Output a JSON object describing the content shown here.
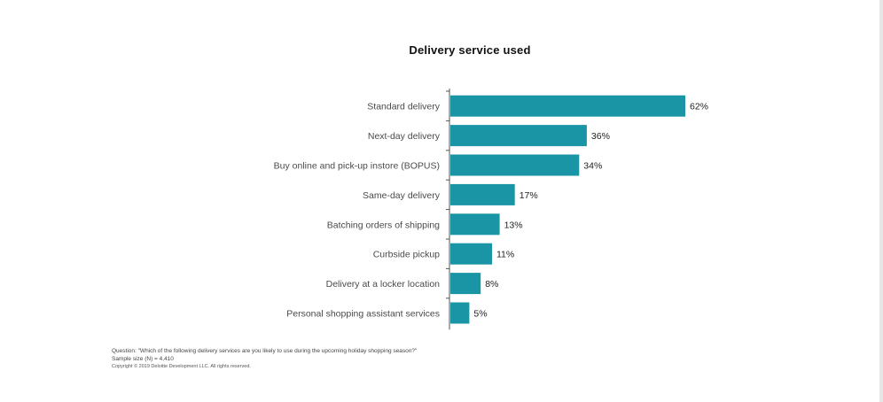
{
  "chart_data": {
    "type": "bar",
    "orientation": "horizontal",
    "title": "Delivery service used",
    "categories": [
      "Standard delivery",
      "Next-day delivery",
      "Buy online and pick-up instore (BOPUS)",
      "Same-day delivery",
      "Batching orders of shipping",
      "Curbside pickup",
      "Delivery at a locker location",
      "Personal shopping assistant services"
    ],
    "values": [
      62,
      36,
      34,
      17,
      13,
      11,
      8,
      5
    ],
    "value_labels": [
      "62%",
      "36%",
      "34%",
      "17%",
      "13%",
      "11%",
      "8%",
      "5%"
    ],
    "xlabel": "",
    "ylabel": "",
    "xlim": [
      0,
      62
    ],
    "grid": false,
    "bar_color": "#1a95a5"
  },
  "footnotes": {
    "question": "Question: \"Which of the following delivery services are you likely to use during the upcoming holiday shopping season?\"",
    "sample": "Sample size (N) = 4,410",
    "copyright": "Copyright © 2019 Deloitte Development LLC. All rights reserved."
  }
}
